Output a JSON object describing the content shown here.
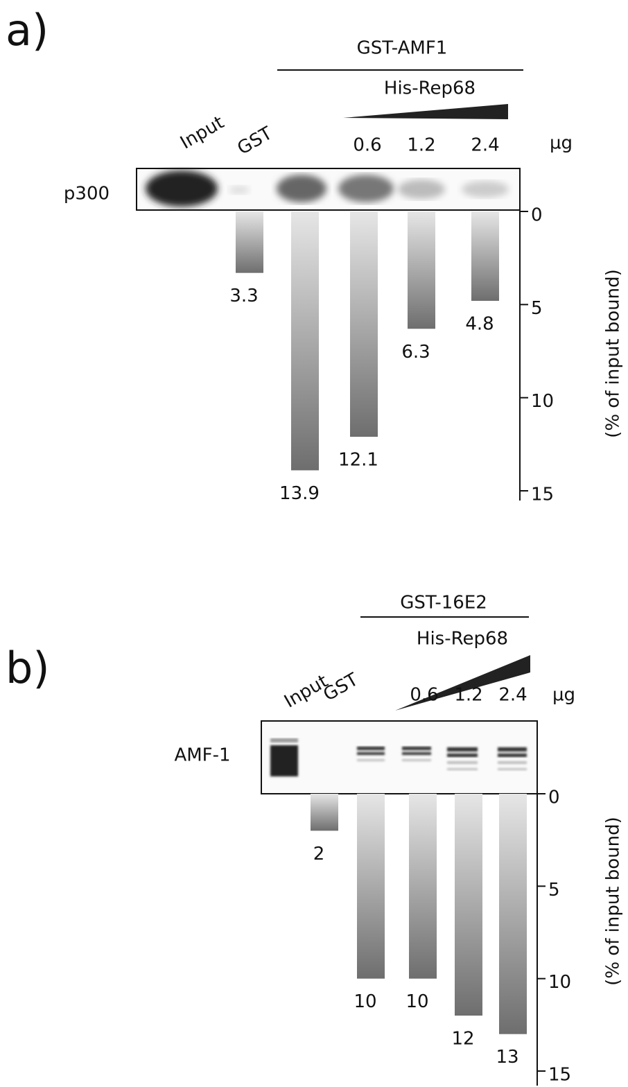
{
  "chart_data": [
    {
      "type": "bar",
      "panel": "a)",
      "group_label": "GST-AMF1",
      "titrant_label": "His-Rep68",
      "unit": "µg",
      "row_label": "p300",
      "ylabel": "(% of input bound)",
      "categories": [
        "Input",
        "GST",
        null,
        "0.6",
        "1.2",
        "2.4"
      ],
      "values": [
        null,
        3.3,
        13.9,
        12.1,
        6.3,
        4.8
      ],
      "ylim": [
        0,
        15
      ],
      "yticks": [
        0,
        5,
        10,
        15
      ]
    },
    {
      "type": "bar",
      "panel": "b)",
      "group_label": "GST-16E2",
      "titrant_label": "His-Rep68",
      "unit": "µg",
      "row_label": "AMF-1",
      "ylabel": "(% of input bound)",
      "categories": [
        "Input",
        "GST",
        null,
        "0.6",
        "1.2",
        "2.4"
      ],
      "values": [
        null,
        2,
        10,
        10,
        12,
        13
      ],
      "ylim": [
        0,
        15
      ],
      "yticks": [
        0,
        5,
        10,
        15
      ]
    }
  ]
}
